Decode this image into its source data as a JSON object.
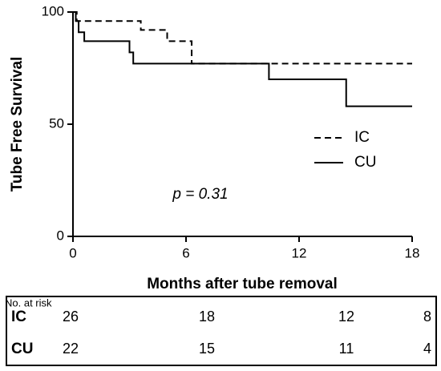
{
  "chart_data": {
    "type": "step",
    "xlabel": "Months after tube removal",
    "ylabel": "Tube Free Survival",
    "annotation": "p = 0.31",
    "xlim": [
      0,
      18
    ],
    "xticks": [
      0,
      6,
      12,
      18
    ],
    "ylim": [
      0,
      100
    ],
    "yticks": [
      0,
      50,
      100
    ],
    "series": [
      {
        "name": "IC",
        "color": "#000000",
        "dash": true,
        "x": [
          0,
          0.2,
          3.6,
          5,
          6.3,
          18
        ],
        "values": [
          100,
          96,
          92,
          87,
          77,
          77
        ]
      },
      {
        "name": "CU",
        "color": "#000000",
        "dash": false,
        "x": [
          0,
          0.15,
          0.3,
          0.6,
          3,
          3.2,
          10.4,
          14.5,
          18
        ],
        "values": [
          100,
          96,
          91,
          87,
          82,
          77,
          70,
          58,
          58
        ]
      }
    ],
    "risk_table": {
      "title": "No. at risk",
      "rows": [
        {
          "name": "IC",
          "values": [
            26,
            18,
            12,
            8
          ]
        },
        {
          "name": "CU",
          "values": [
            22,
            15,
            11,
            4
          ]
        }
      ]
    }
  }
}
